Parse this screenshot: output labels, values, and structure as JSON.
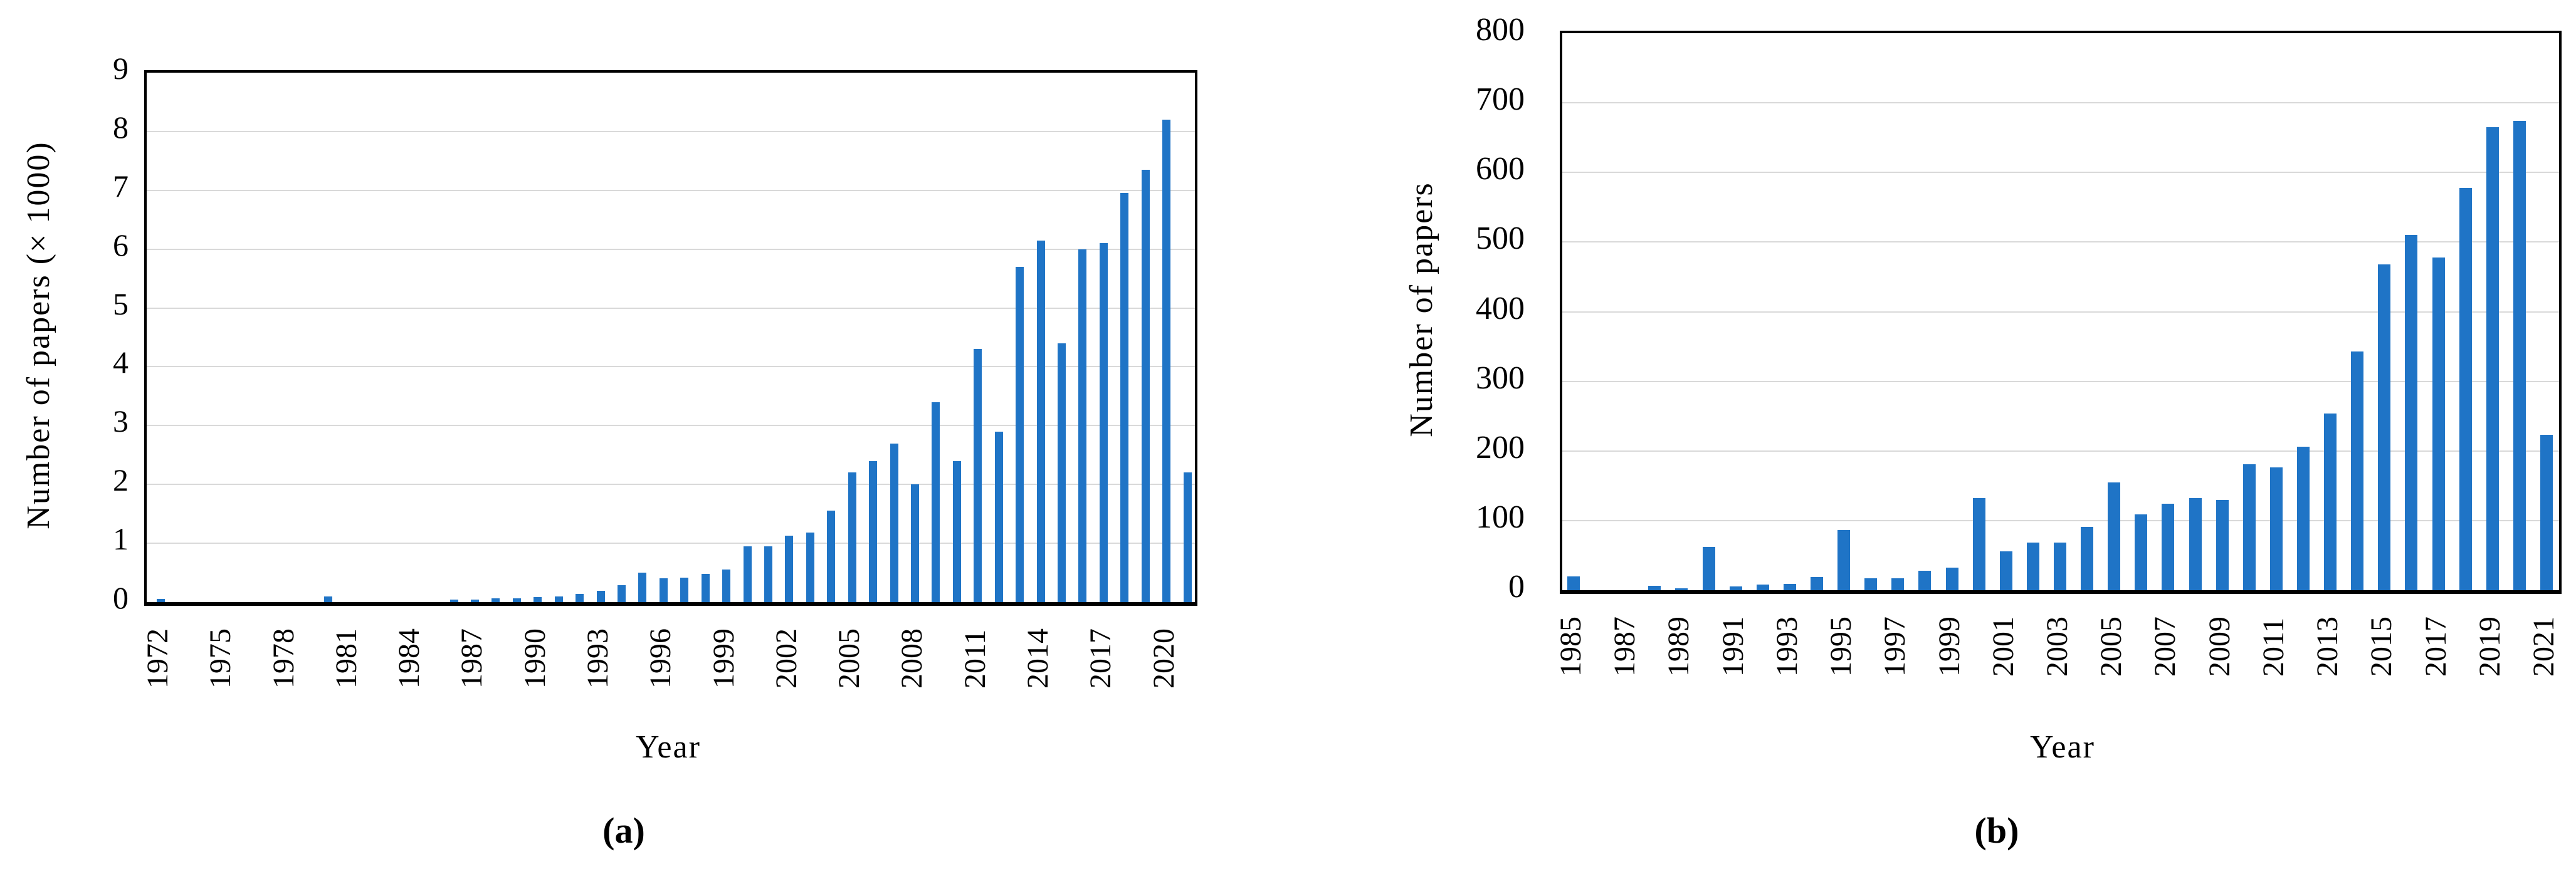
{
  "figure": {
    "background": "#ffffff",
    "caption_a": "(a)",
    "caption_b": "(b)"
  },
  "colors": {
    "bar": "#1f74c6",
    "gridline": "#d9d9d9",
    "axis": "#000000",
    "text": "#000000"
  },
  "chart_data": [
    {
      "id": "a",
      "type": "bar",
      "title": "",
      "xlabel": "Year",
      "ylabel": "Number of papers (× 1000)",
      "legend": "none",
      "grid": true,
      "ylim": [
        0,
        9
      ],
      "y_tick_step": 1,
      "y_ticks": [
        "0",
        "1",
        "2",
        "3",
        "4",
        "5",
        "6",
        "7",
        "8",
        "9"
      ],
      "x_tick_labels": [
        "1972",
        "1975",
        "1978",
        "1981",
        "1984",
        "1987",
        "1990",
        "1993",
        "1996",
        "1999",
        "2002",
        "2005",
        "2008",
        "2011",
        "2014",
        "2017",
        "2020"
      ],
      "categories": [
        1972,
        1973,
        1974,
        1975,
        1976,
        1977,
        1978,
        1979,
        1980,
        1981,
        1982,
        1983,
        1984,
        1985,
        1986,
        1987,
        1988,
        1989,
        1990,
        1991,
        1992,
        1993,
        1994,
        1995,
        1996,
        1997,
        1998,
        1999,
        2000,
        2001,
        2002,
        2003,
        2004,
        2005,
        2006,
        2007,
        2008,
        2009,
        2010,
        2011,
        2012,
        2013,
        2014,
        2015,
        2016,
        2017,
        2018,
        2019,
        2020,
        2021
      ],
      "values": [
        0.05,
        0,
        0,
        0,
        0,
        0,
        0,
        0,
        0.1,
        0,
        0,
        0,
        0,
        0,
        0.04,
        0.04,
        0.06,
        0.06,
        0.09,
        0.1,
        0.14,
        0.19,
        0.29,
        0.5,
        0.4,
        0.42,
        0.48,
        0.55,
        0.95,
        0.95,
        1.13,
        1.18,
        1.55,
        2.2,
        2.4,
        2.7,
        2.0,
        3.4,
        2.4,
        4.3,
        2.9,
        5.7,
        6.15,
        4.4,
        6.0,
        6.1,
        6.95,
        7.35,
        8.2,
        2.2
      ]
    },
    {
      "id": "b",
      "type": "bar",
      "title": "",
      "xlabel": "Year",
      "ylabel": "Number of papers",
      "legend": "none",
      "grid": true,
      "ylim": [
        0,
        800
      ],
      "y_tick_step": 100,
      "y_ticks": [
        "0",
        "100",
        "200",
        "300",
        "400",
        "500",
        "600",
        "700",
        "800"
      ],
      "x_tick_labels": [
        "1985",
        "1987",
        "1989",
        "1991",
        "1993",
        "1995",
        "1997",
        "1999",
        "2001",
        "2003",
        "2005",
        "2007",
        "2009",
        "2011",
        "2013",
        "2015",
        "2017",
        "2019",
        "2021"
      ],
      "categories": [
        1985,
        1986,
        1987,
        1988,
        1989,
        1990,
        1991,
        1992,
        1993,
        1994,
        1995,
        1996,
        1997,
        1998,
        1999,
        2000,
        2001,
        2002,
        2003,
        2004,
        2005,
        2006,
        2007,
        2008,
        2009,
        2010,
        2011,
        2012,
        2013,
        2014,
        2015,
        2016,
        2017,
        2018,
        2019,
        2020,
        2021
      ],
      "values": [
        20,
        0,
        0,
        6,
        3,
        62,
        5,
        8,
        9,
        19,
        86,
        17,
        17,
        28,
        32,
        132,
        56,
        68,
        68,
        91,
        155,
        109,
        124,
        132,
        130,
        181,
        176,
        206,
        254,
        343,
        468,
        510,
        478,
        578,
        665,
        674,
        223
      ]
    }
  ]
}
